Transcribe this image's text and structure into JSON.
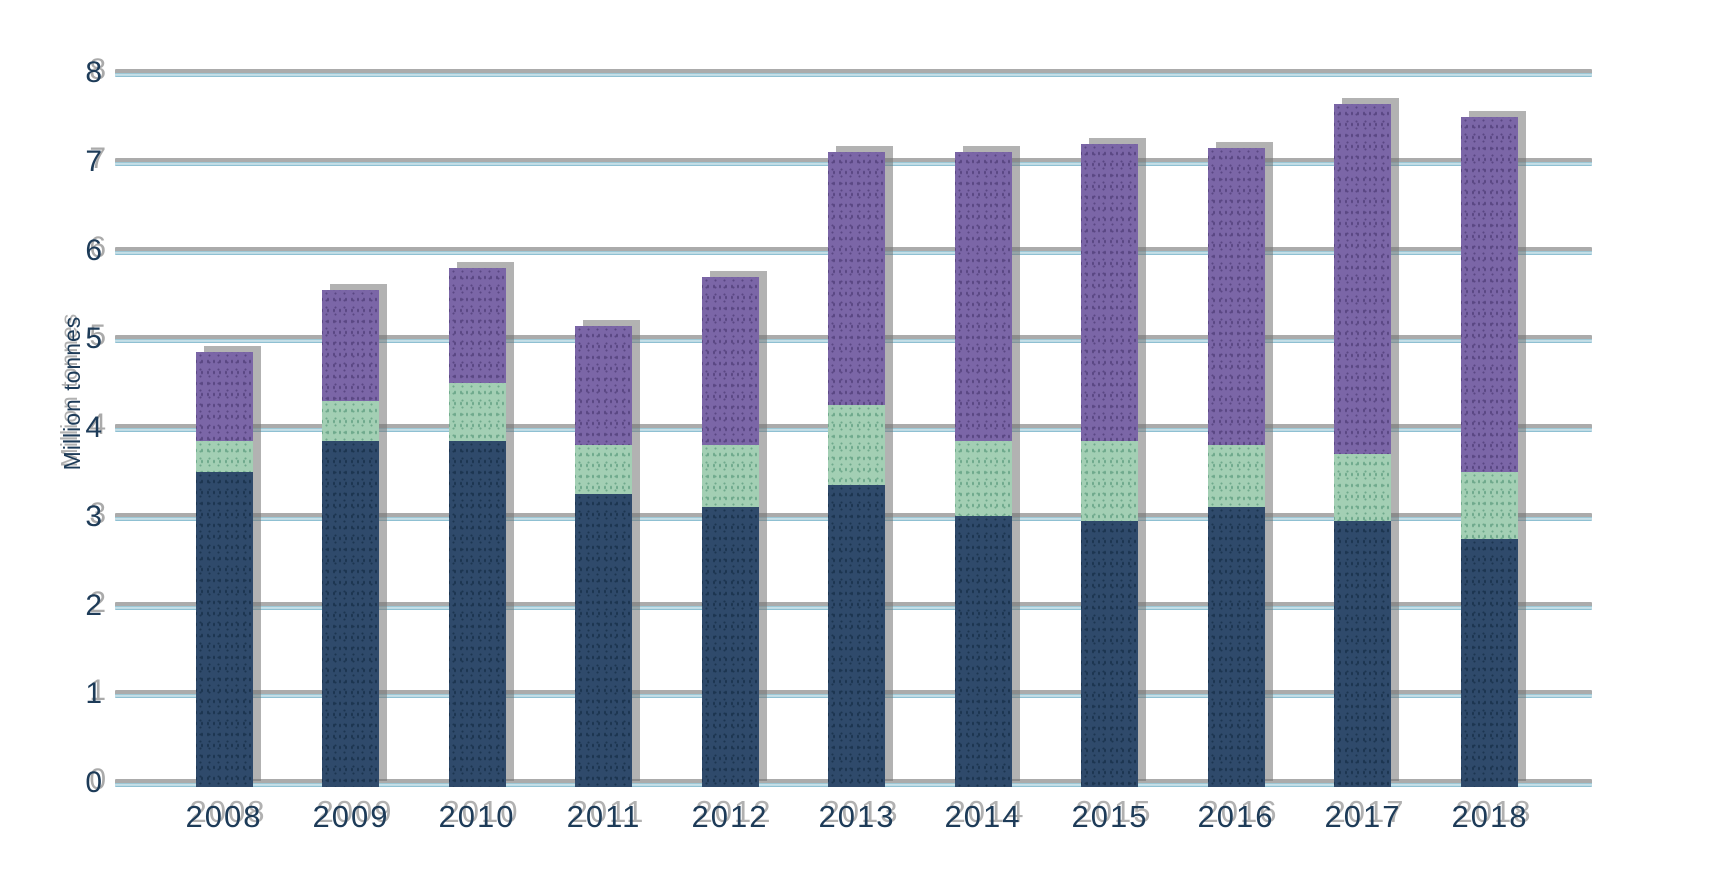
{
  "chart_data": {
    "type": "bar",
    "stacked": true,
    "title": "",
    "xlabel": "",
    "ylabel": "Million tonnes",
    "categories": [
      "2008",
      "2009",
      "2010",
      "2011",
      "2012",
      "2013",
      "2014",
      "2015",
      "2016",
      "2017",
      "2018"
    ],
    "series": [
      {
        "name": "dark-blue-bottom-segment",
        "color": "#2f4a6b",
        "speckle_color": "#1c3550",
        "values": [
          3.55,
          3.9,
          3.9,
          3.3,
          3.15,
          3.4,
          3.05,
          3.0,
          3.15,
          3.0,
          2.8
        ]
      },
      {
        "name": "green-middle-segment",
        "color": "#a3cfb4",
        "speckle_color": "#6fa98c",
        "values": [
          0.35,
          0.45,
          0.65,
          0.55,
          0.7,
          0.9,
          0.85,
          0.9,
          0.7,
          0.75,
          0.75
        ]
      },
      {
        "name": "purple-top-segment",
        "color": "#7b66a7",
        "speckle_color": "#5a4783",
        "values": [
          1.0,
          1.25,
          1.3,
          1.35,
          1.9,
          2.85,
          3.25,
          3.35,
          3.35,
          3.95,
          4.0
        ]
      }
    ],
    "stack_totals": [
      4.9,
      5.6,
      5.85,
      5.2,
      5.75,
      7.15,
      7.15,
      7.25,
      7.2,
      7.7,
      7.55
    ],
    "yticks": [
      "0",
      "1",
      "2",
      "3",
      "4",
      "5",
      "6",
      "7",
      "8"
    ],
    "ylim": [
      0,
      8
    ],
    "grid": "horizontal",
    "legend": "none"
  },
  "colors": {
    "background": "#ffffff",
    "gridline_gray": "#ababab",
    "gridline_blue": "#8fc0d2",
    "axis_text": "#1d3b58",
    "shadow_gray": "#8a8a8a"
  }
}
